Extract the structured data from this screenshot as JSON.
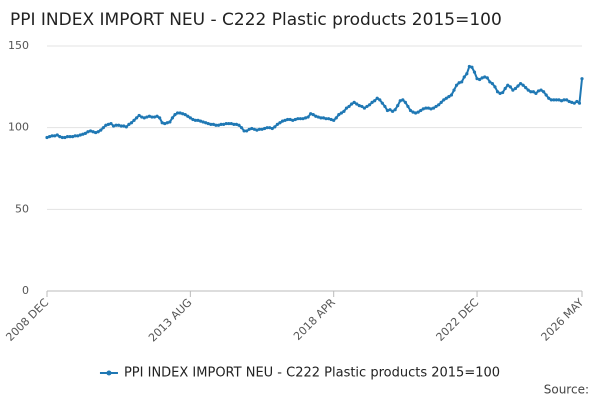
{
  "chart_data": {
    "type": "line",
    "title": "PPI INDEX IMPORT NEU - C222 Plastic products 2015=100",
    "source_label": "Source:",
    "categories": [
      "2008 DEC",
      null,
      null,
      null,
      null,
      null,
      null,
      null,
      null,
      null,
      null,
      null,
      null,
      null,
      null,
      null,
      null,
      null,
      null,
      null,
      null,
      null,
      null,
      null,
      null,
      null,
      null,
      null,
      null,
      null,
      null,
      null,
      null,
      null,
      null,
      null,
      null,
      null,
      null,
      null,
      null,
      null,
      null,
      null,
      null,
      null,
      null,
      null,
      null,
      null,
      null,
      null,
      null,
      null,
      null,
      null,
      "2013 AUG",
      null,
      null,
      null,
      null,
      null,
      null,
      null,
      null,
      null,
      null,
      null,
      null,
      null,
      null,
      null,
      null,
      null,
      null,
      null,
      null,
      null,
      null,
      null,
      null,
      null,
      null,
      null,
      null,
      null,
      null,
      null,
      null,
      null,
      null,
      null,
      null,
      null,
      null,
      null,
      null,
      null,
      null,
      null,
      null,
      null,
      null,
      null,
      null,
      null,
      null,
      null,
      null,
      null,
      null,
      null,
      "2018 APR",
      null,
      null,
      null,
      null,
      null,
      null,
      null,
      null,
      null,
      null,
      null,
      null,
      null,
      null,
      null,
      null,
      null,
      null,
      null,
      null,
      null,
      null,
      null,
      null,
      null,
      null,
      null,
      null,
      null,
      null,
      null,
      null,
      null,
      null,
      null,
      null,
      null,
      null,
      null,
      null,
      null,
      null,
      null,
      null,
      null,
      null,
      null,
      null,
      null,
      null,
      null,
      null,
      null,
      null,
      null,
      "2022 DEC",
      null,
      null,
      null,
      null,
      null,
      null,
      null,
      null,
      null,
      null,
      null,
      null,
      null,
      null,
      null,
      null,
      null,
      null,
      null,
      null,
      null,
      null,
      null,
      null,
      null,
      null,
      null,
      null,
      null,
      null,
      null,
      null,
      null,
      null,
      null,
      null,
      null,
      null,
      null,
      null,
      "2026 MAY"
    ],
    "series": [
      {
        "name": "PPI INDEX IMPORT NEU - C222 Plastic products 2015=100",
        "color": "#1f78b4",
        "values": [
          94,
          94.5,
          95,
          95,
          95.5,
          94.5,
          94,
          94,
          94.5,
          94.5,
          94.5,
          95,
          95,
          95.5,
          96,
          96.5,
          97.5,
          98,
          97.5,
          97,
          97.5,
          98.5,
          100,
          101.5,
          102,
          102.5,
          101,
          101.5,
          101.5,
          101,
          101,
          100.5,
          102,
          103,
          104.5,
          106,
          107.5,
          106.5,
          106,
          106.5,
          107,
          106.5,
          106.5,
          107,
          106,
          103,
          102.5,
          103,
          103.5,
          106,
          108,
          109,
          109,
          108.5,
          108,
          107,
          106,
          105,
          104.5,
          104.5,
          104,
          103.5,
          103,
          102.5,
          102,
          102,
          101.5,
          101.5,
          102,
          102,
          102.5,
          102.5,
          102.5,
          102,
          102,
          101.5,
          100,
          98,
          98,
          99,
          99.5,
          99,
          98.5,
          99,
          99,
          99.5,
          100,
          100,
          99.5,
          100.5,
          102,
          103,
          104,
          104.5,
          105,
          105,
          104.5,
          105,
          105.5,
          105.5,
          105.5,
          106,
          106.5,
          108.5,
          108,
          107,
          106.5,
          106,
          106,
          105.5,
          105.5,
          105,
          104.5,
          106,
          108,
          109,
          110,
          112,
          113,
          114.5,
          115.5,
          114.5,
          113.5,
          113,
          112,
          113,
          114,
          115.5,
          116.5,
          118,
          117,
          115,
          113,
          110.5,
          111,
          110,
          111,
          113.5,
          116.5,
          117,
          115.5,
          113,
          110.5,
          109.5,
          109,
          109.5,
          110.5,
          111.5,
          112,
          112,
          111.5,
          112,
          113,
          114,
          115.5,
          117,
          118,
          119,
          120,
          123,
          126,
          127.5,
          128,
          131,
          133,
          137.5,
          137,
          134,
          130,
          129.5,
          130.5,
          131,
          130.5,
          128,
          127,
          125,
          122,
          121,
          121.5,
          124,
          126,
          125,
          123,
          124,
          125.5,
          127,
          126,
          124.5,
          123,
          122,
          122,
          121,
          122.5,
          123,
          122,
          120,
          118,
          117,
          117,
          117,
          117,
          116.5,
          117,
          117,
          116,
          115.5,
          115,
          116,
          115,
          130
        ]
      }
    ],
    "ylim": [
      0,
      150
    ],
    "yticks": [
      0,
      50,
      100,
      150
    ],
    "grid": true
  }
}
